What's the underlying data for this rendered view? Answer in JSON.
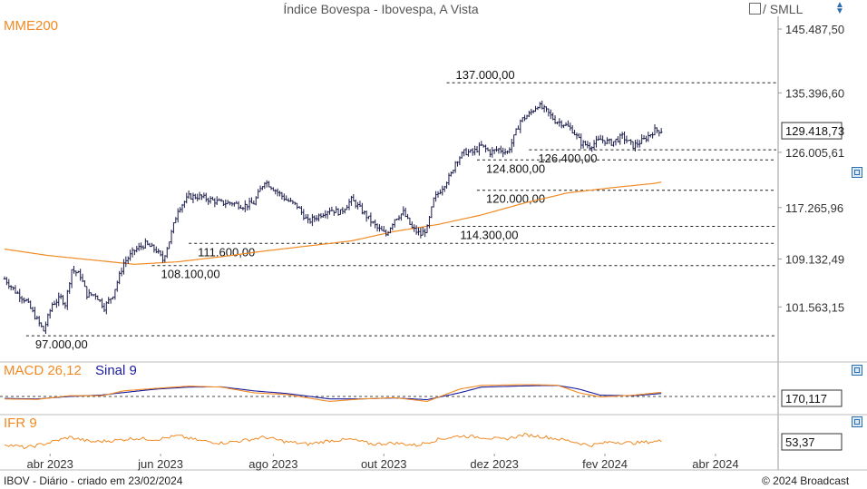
{
  "header": {
    "title": "Índice Bovespa - Ibovespa, A Vista",
    "smll_label": "/ SMLL",
    "updown_icon": "sort-updown-icon"
  },
  "labels": {
    "mme": "MME200",
    "macd": "MACD 26,12",
    "signal": "Sinal 9",
    "ifr": "IFR 9"
  },
  "colors": {
    "price": "#1a1a4a",
    "mme": "#f08a24",
    "macd": "#f08a24",
    "signal": "#1c1c9c",
    "axis": "#999999"
  },
  "footer": {
    "left": "IBOV - Diário - criado em 23/02/2024",
    "right": "© 2024 Broadcast"
  },
  "chart_data": [
    {
      "name": "price",
      "type": "ohlc",
      "ylim": [
        93000,
        147500
      ],
      "y_ticks": [
        145487.5,
        135396.6,
        126005.61,
        117265.96,
        109132.49,
        101563.15
      ],
      "y_tick_labels": [
        "145.487,50",
        "135.396,60",
        "126.005,61",
        "117.265,96",
        "109.132,49",
        "101.563,15"
      ],
      "last_value_label": "129.418,73",
      "last_value": 129418.73,
      "x_tick_labels": [
        "abr 2023",
        "jun 2023",
        "ago 2023",
        "out 2023",
        "dez 2023",
        "fev 2024",
        "abr 2024"
      ],
      "close_anchors": [
        [
          0,
          106000
        ],
        [
          5,
          104000
        ],
        [
          10,
          102500
        ],
        [
          15,
          99500
        ],
        [
          18,
          97800
        ],
        [
          22,
          102000
        ],
        [
          26,
          103000
        ],
        [
          28,
          102000
        ],
        [
          31,
          107500
        ],
        [
          35,
          106500
        ],
        [
          38,
          103500
        ],
        [
          42,
          103500
        ],
        [
          46,
          101500
        ],
        [
          50,
          103500
        ],
        [
          55,
          108500
        ],
        [
          60,
          110500
        ],
        [
          65,
          111500
        ],
        [
          70,
          110500
        ],
        [
          73,
          109000
        ],
        [
          76,
          112000
        ],
        [
          80,
          117000
        ],
        [
          85,
          119000
        ],
        [
          90,
          119000
        ],
        [
          95,
          118500
        ],
        [
          100,
          118000
        ],
        [
          105,
          118000
        ],
        [
          110,
          117500
        ],
        [
          115,
          118000
        ],
        [
          120,
          121500
        ],
        [
          125,
          120000
        ],
        [
          130,
          118500
        ],
        [
          135,
          117500
        ],
        [
          140,
          115000
        ],
        [
          145,
          116000
        ],
        [
          150,
          117000
        ],
        [
          155,
          116500
        ],
        [
          160,
          118500
        ],
        [
          163,
          117500
        ],
        [
          168,
          115500
        ],
        [
          172,
          114000
        ],
        [
          176,
          113000
        ],
        [
          180,
          115500
        ],
        [
          184,
          116500
        ],
        [
          188,
          114000
        ],
        [
          192,
          113000
        ],
        [
          195,
          114000
        ],
        [
          198,
          118500
        ],
        [
          202,
          120500
        ],
        [
          206,
          122500
        ],
        [
          208,
          124500
        ],
        [
          212,
          126000
        ],
        [
          216,
          126000
        ],
        [
          220,
          127000
        ],
        [
          224,
          126000
        ],
        [
          228,
          126500
        ],
        [
          232,
          126000
        ],
        [
          234,
          127500
        ],
        [
          238,
          131000
        ],
        [
          242,
          132000
        ],
        [
          246,
          133500
        ],
        [
          250,
          132500
        ],
        [
          254,
          131000
        ],
        [
          258,
          130500
        ],
        [
          262,
          129500
        ],
        [
          266,
          127500
        ],
        [
          270,
          127000
        ],
        [
          275,
          128000
        ],
        [
          280,
          127500
        ],
        [
          285,
          128500
        ],
        [
          290,
          127000
        ],
        [
          295,
          128000
        ],
        [
          300,
          129500
        ],
        [
          303,
          129419
        ]
      ],
      "mme200_anchors": [
        [
          0,
          110700
        ],
        [
          20,
          109700
        ],
        [
          40,
          109000
        ],
        [
          60,
          108300
        ],
        [
          80,
          108700
        ],
        [
          100,
          109500
        ],
        [
          120,
          110400
        ],
        [
          140,
          111200
        ],
        [
          160,
          112000
        ],
        [
          180,
          113500
        ],
        [
          200,
          114600
        ],
        [
          220,
          116100
        ],
        [
          240,
          118000
        ],
        [
          260,
          119600
        ],
        [
          280,
          120400
        ],
        [
          300,
          121100
        ],
        [
          303,
          121300
        ]
      ],
      "levels": [
        {
          "value": 137000,
          "label": "137.000,00",
          "x_start": 204,
          "label_position": "above-left"
        },
        {
          "value": 126400,
          "label": "126.400,00",
          "x_start": 242,
          "label_position": "below-left"
        },
        {
          "value": 124800,
          "label": "124.800,00",
          "x_start": 218,
          "label_position": "below-left"
        },
        {
          "value": 120000,
          "label": "120.000,00",
          "x_start": 218,
          "label_position": "below-left"
        },
        {
          "value": 114300,
          "label": "114.300,00",
          "x_start": 206,
          "label_position": "below-left"
        },
        {
          "value": 111600,
          "label": "111.600,00",
          "x_start": 85,
          "label_position": "below-left"
        },
        {
          "value": 108100,
          "label": "108.100,00",
          "x_start": 68,
          "label_position": "below-left"
        },
        {
          "value": 97000,
          "label": "97.000,00",
          "x_start": 10,
          "label_position": "below-left"
        }
      ]
    },
    {
      "name": "macd",
      "type": "line",
      "ylim": [
        -700,
        700
      ],
      "last_value_label": "170,117",
      "zero_line": 0,
      "macd_anchors": [
        [
          0,
          -100
        ],
        [
          15,
          -120
        ],
        [
          30,
          30
        ],
        [
          45,
          30
        ],
        [
          55,
          230
        ],
        [
          70,
          330
        ],
        [
          85,
          420
        ],
        [
          100,
          380
        ],
        [
          115,
          150
        ],
        [
          130,
          80
        ],
        [
          150,
          -200
        ],
        [
          165,
          -100
        ],
        [
          180,
          -50
        ],
        [
          195,
          -200
        ],
        [
          210,
          300
        ],
        [
          220,
          450
        ],
        [
          240,
          480
        ],
        [
          255,
          460
        ],
        [
          265,
          150
        ],
        [
          275,
          -20
        ],
        [
          290,
          50
        ],
        [
          303,
          170
        ]
      ],
      "signal_anchors": [
        [
          0,
          -80
        ],
        [
          15,
          -100
        ],
        [
          30,
          0
        ],
        [
          45,
          60
        ],
        [
          55,
          160
        ],
        [
          70,
          300
        ],
        [
          85,
          380
        ],
        [
          100,
          390
        ],
        [
          115,
          230
        ],
        [
          130,
          120
        ],
        [
          150,
          -100
        ],
        [
          165,
          -100
        ],
        [
          180,
          -60
        ],
        [
          195,
          -130
        ],
        [
          210,
          150
        ],
        [
          220,
          380
        ],
        [
          240,
          430
        ],
        [
          255,
          450
        ],
        [
          265,
          300
        ],
        [
          275,
          50
        ],
        [
          290,
          30
        ],
        [
          303,
          120
        ]
      ]
    },
    {
      "name": "ifr",
      "type": "line",
      "ylim": [
        0,
        100
      ],
      "last_value_label": "53,37",
      "ifr_anchors": [
        [
          0,
          40
        ],
        [
          10,
          25
        ],
        [
          20,
          45
        ],
        [
          30,
          70
        ],
        [
          40,
          50
        ],
        [
          50,
          55
        ],
        [
          60,
          65
        ],
        [
          70,
          60
        ],
        [
          80,
          75
        ],
        [
          90,
          55
        ],
        [
          100,
          45
        ],
        [
          110,
          55
        ],
        [
          120,
          70
        ],
        [
          130,
          50
        ],
        [
          140,
          40
        ],
        [
          150,
          55
        ],
        [
          160,
          60
        ],
        [
          170,
          40
        ],
        [
          180,
          45
        ],
        [
          190,
          35
        ],
        [
          200,
          60
        ],
        [
          210,
          75
        ],
        [
          220,
          70
        ],
        [
          230,
          60
        ],
        [
          240,
          80
        ],
        [
          250,
          70
        ],
        [
          260,
          55
        ],
        [
          270,
          35
        ],
        [
          280,
          50
        ],
        [
          290,
          45
        ],
        [
          303,
          53.37
        ]
      ]
    }
  ]
}
